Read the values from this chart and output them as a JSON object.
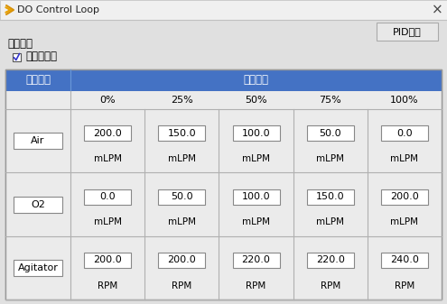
{
  "title_bar": "DO Control Loop",
  "pid_button": "PID设置",
  "section_label": "控制循环",
  "checkbox_label": "正调控使能",
  "header_col1": "关联设备",
  "header_col2": "输出节点",
  "col_percentages": [
    "0%",
    "25%",
    "50%",
    "75%",
    "100%"
  ],
  "rows": [
    {
      "device": "Air",
      "values": [
        "200.0",
        "150.0",
        "100.0",
        "50.0",
        "0.0"
      ],
      "unit": "mLPM"
    },
    {
      "device": "O2",
      "values": [
        "0.0",
        "50.0",
        "100.0",
        "150.0",
        "200.0"
      ],
      "unit": "mLPM"
    },
    {
      "device": "Agitator",
      "values": [
        "200.0",
        "200.0",
        "220.0",
        "220.0",
        "240.0"
      ],
      "unit": "RPM"
    }
  ],
  "bg_color": "#e0e0e0",
  "header_bg": "#4472c4",
  "header_text_color": "#ffffff",
  "table_line_color": "#b0b0b0",
  "border_color": "#999999",
  "input_box_color": "#ffffff",
  "input_box_border": "#888888",
  "text_color": "#000000",
  "title_bar_bg": "#f0f0f0",
  "row_bg_light": "#ebebeb",
  "row_bg_white": "#ffffff",
  "pid_btn_bg": "#e8e8e8",
  "pid_btn_border": "#aaaaaa"
}
